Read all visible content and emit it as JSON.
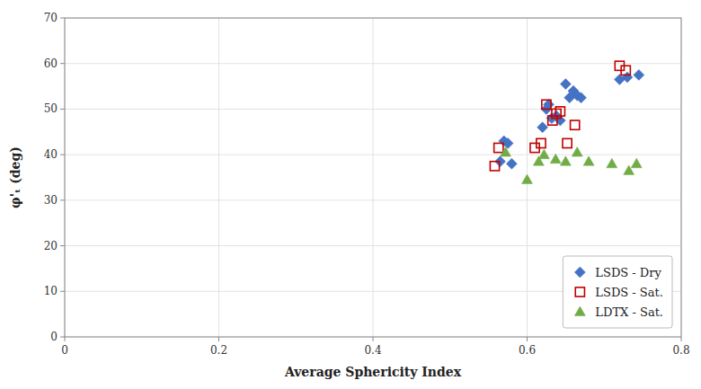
{
  "chart_data": {
    "type": "scatter",
    "xlabel": "Average Sphericity Index",
    "ylabel": "φ'ₜ (deg)",
    "xlim": [
      0,
      0.8
    ],
    "ylim": [
      0,
      70
    ],
    "xticks": [
      0,
      0.2,
      0.4,
      0.6,
      0.8
    ],
    "yticks": [
      0,
      10,
      20,
      30,
      40,
      50,
      60,
      70
    ],
    "grid": true,
    "legend": "lower right",
    "series": [
      {
        "name": "LSDS - Dry",
        "color": "#4472C4",
        "marker": "diamond",
        "x": [
          0.565,
          0.57,
          0.575,
          0.58,
          0.62,
          0.625,
          0.628,
          0.632,
          0.638,
          0.643,
          0.65,
          0.655,
          0.66,
          0.665,
          0.67,
          0.72,
          0.73,
          0.745
        ],
        "values": [
          38.5,
          43.0,
          42.5,
          38.0,
          46.0,
          50.0,
          51.0,
          48.0,
          48.5,
          47.5,
          55.5,
          52.5,
          54.0,
          53.0,
          52.5,
          56.5,
          57.0,
          57.5
        ]
      },
      {
        "name": "LSDS - Sat.",
        "color": "#C00000",
        "marker": "square-open",
        "x": [
          0.558,
          0.563,
          0.61,
          0.618,
          0.625,
          0.633,
          0.638,
          0.643,
          0.652,
          0.662,
          0.72,
          0.728
        ],
        "values": [
          37.5,
          41.5,
          41.5,
          42.5,
          51.0,
          47.5,
          49.0,
          49.5,
          42.5,
          46.5,
          59.5,
          58.5
        ]
      },
      {
        "name": "LDTX - Sat.",
        "color": "#70AD47",
        "marker": "triangle",
        "x": [
          0.572,
          0.6,
          0.615,
          0.622,
          0.637,
          0.65,
          0.665,
          0.68,
          0.71,
          0.732,
          0.742
        ],
        "values": [
          40.5,
          34.5,
          38.5,
          40.0,
          39.0,
          38.5,
          40.5,
          38.5,
          38.0,
          36.5,
          38.0
        ]
      }
    ]
  }
}
